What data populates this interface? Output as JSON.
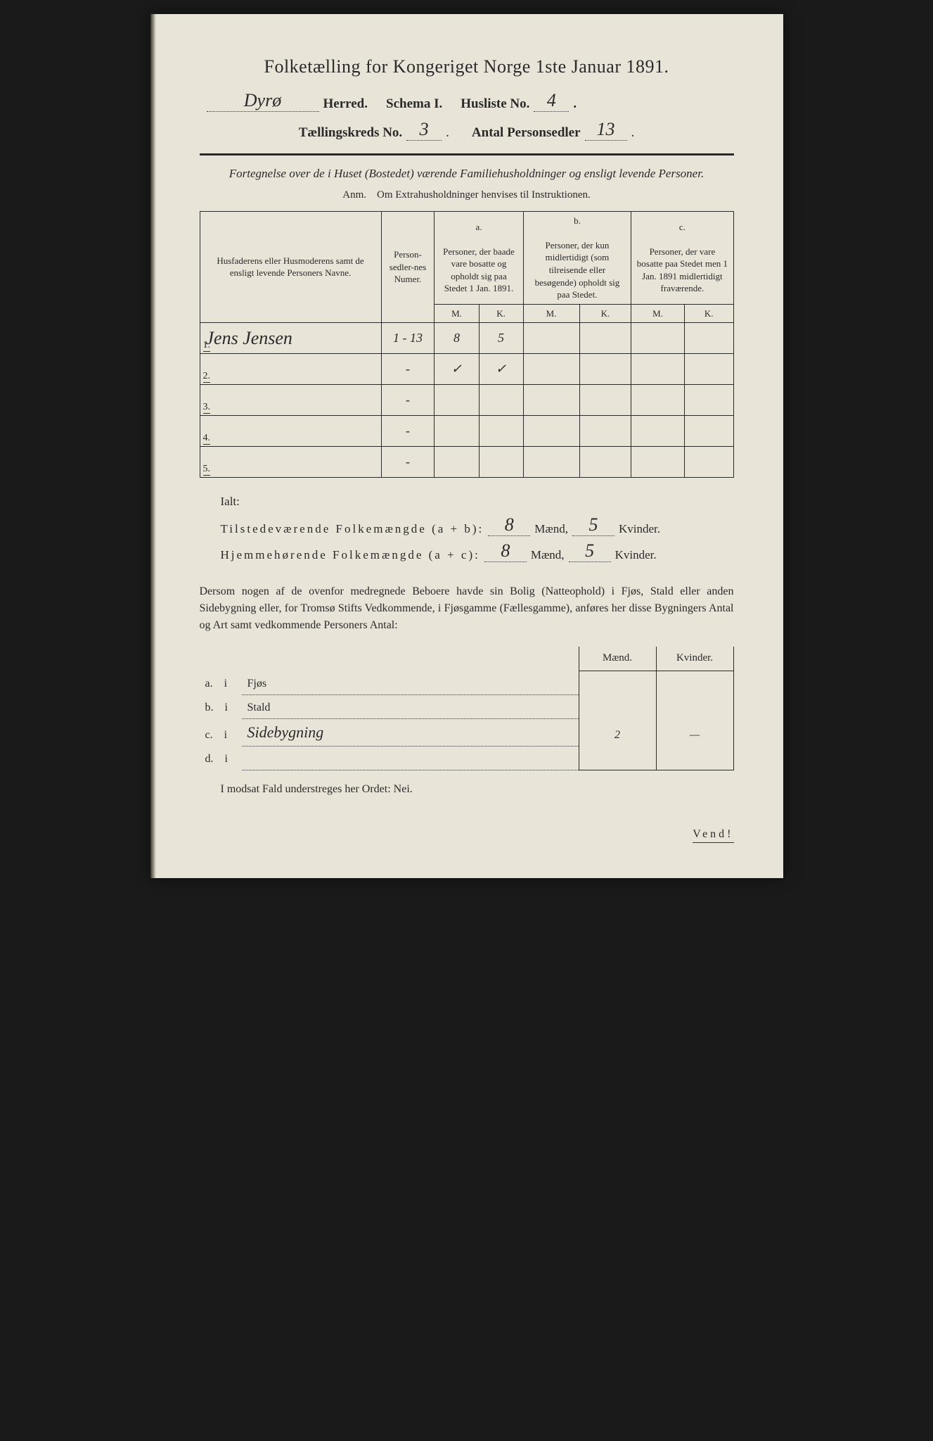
{
  "header": {
    "title": "Folketælling for Kongeriget Norge 1ste Januar 1891.",
    "herred_value": "Dyrø",
    "herred_label": "Herred.",
    "schema_label": "Schema I.",
    "husliste_label": "Husliste No.",
    "husliste_value": "4",
    "kreds_label": "Tællingskreds No.",
    "kreds_value": "3",
    "antal_label": "Antal Personsedler",
    "antal_value": "13"
  },
  "section": {
    "subtitle": "Fortegnelse over de i Huset (Bostedet) værende Familiehusholdninger og ensligt levende Personer.",
    "anm": "Anm. Om Extrahusholdninger henvises til Instruktionen."
  },
  "table": {
    "col_name": "Husfaderens eller Husmoderens samt de ensligt levende Personers Navne.",
    "col_numer": "Person-sedler-nes Numer.",
    "col_a_top": "a.",
    "col_a": "Personer, der baade vare bosatte og opholdt sig paa Stedet 1 Jan. 1891.",
    "col_b_top": "b.",
    "col_b": "Personer, der kun midlertidigt (som tilreisende eller besøgende) opholdt sig paa Stedet.",
    "col_c_top": "c.",
    "col_c": "Personer, der vare bosatte paa Stedet men 1 Jan. 1891 midlertidigt fraværende.",
    "m": "M.",
    "k": "K.",
    "rows": [
      {
        "n": "1.",
        "name": "Jens Jensen",
        "numer": "1 - 13",
        "am": "8",
        "ak": "5",
        "bm": "",
        "bk": "",
        "cm": "",
        "ck": ""
      },
      {
        "n": "2.",
        "name": "",
        "numer": "-",
        "am": "✓",
        "ak": "✓",
        "bm": "",
        "bk": "",
        "cm": "",
        "ck": ""
      },
      {
        "n": "3.",
        "name": "",
        "numer": "-",
        "am": "",
        "ak": "",
        "bm": "",
        "bk": "",
        "cm": "",
        "ck": ""
      },
      {
        "n": "4.",
        "name": "",
        "numer": "-",
        "am": "",
        "ak": "",
        "bm": "",
        "bk": "",
        "cm": "",
        "ck": ""
      },
      {
        "n": "5.",
        "name": "",
        "numer": "-",
        "am": "",
        "ak": "",
        "bm": "",
        "bk": "",
        "cm": "",
        "ck": ""
      }
    ]
  },
  "totals": {
    "ialt": "Ialt:",
    "line1_label": "Tilstedeværende Folkemængde (a + b):",
    "line2_label": "Hjemmehørende Folkemængde (a + c):",
    "maend": "Mænd,",
    "kvinder": "Kvinder.",
    "l1_m": "8",
    "l1_k": "5",
    "l2_m": "8",
    "l2_k": "5"
  },
  "para": "Dersom nogen af de ovenfor medregnede Beboere havde sin Bolig (Natteophold) i Fjøs, Stald eller anden Sidebygning eller, for Tromsø Stifts Vedkommende, i Fjøsgamme (Fællesgamme), anføres her disse Bygningers Antal og Art samt vedkommende Personers Antal:",
  "bldg": {
    "h_m": "Mænd.",
    "h_k": "Kvinder.",
    "rows": [
      {
        "lab": "a. i",
        "name": "Fjøs",
        "m": "",
        "k": ""
      },
      {
        "lab": "b. i",
        "name": "Stald",
        "m": "",
        "k": ""
      },
      {
        "lab": "c. i",
        "name": "Sidebygning",
        "m": "2",
        "k": "—"
      },
      {
        "lab": "d. i",
        "name": "",
        "m": "",
        "k": ""
      }
    ]
  },
  "footer": {
    "modsat": "I modsat Fald understreges her Ordet: Nei.",
    "vend": "Vend!"
  },
  "colors": {
    "paper": "#e8e4d8",
    "ink": "#2a2a2a",
    "bg": "#1a1a1a"
  }
}
